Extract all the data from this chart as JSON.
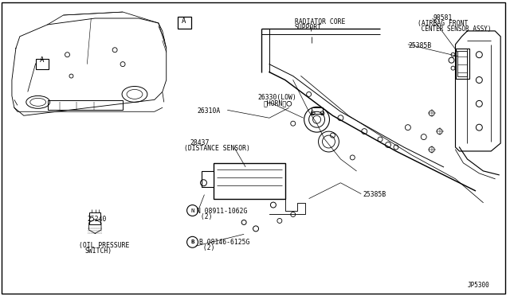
{
  "background_color": "#ffffff",
  "line_color": "#000000",
  "text_color": "#000000",
  "lw": 0.7,
  "fs": 5.8,
  "labels": {
    "A_view": "A",
    "A_main": "A",
    "radiator_core_1": "RADIATOR CORE",
    "radiator_core_2": "SUPPORT",
    "part_98581": "98581",
    "airbag_1": "(AIRBAG FRONT",
    "airbag_2": " CENTER SENSOR ASSY)",
    "part_25385B_top": "25385B",
    "part_26310A": "26310A",
    "part_26330_1": "26330(LOW)",
    "part_26330_2": "（HORN）",
    "part_28437_1": "28437",
    "part_28437_2": "(DISTANCE SENSOR)",
    "part_25385B_mid": "25385B",
    "part_N_1": "N 08911-1062G",
    "part_N_2": " (2)",
    "part_B_1": "B 08146-6125G",
    "part_B_2": " (2)",
    "part_25240": "25240",
    "oil_1": "(OIL PRESSURE",
    "oil_2": "SWITCH)",
    "ref": "JP5300"
  }
}
